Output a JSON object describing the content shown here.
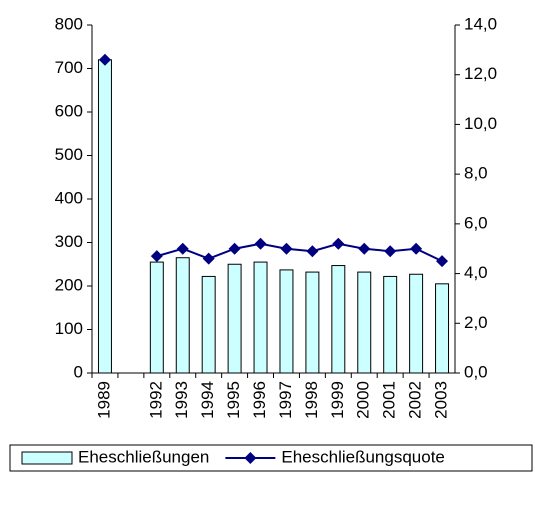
{
  "chart_data": {
    "type": "bar",
    "categories": [
      "1989",
      null,
      "1992",
      "1993",
      "1994",
      "1995",
      "1996",
      "1997",
      "1998",
      "1999",
      "2000",
      "2001",
      "2002",
      "2003"
    ],
    "series": [
      {
        "name": "Eheschließungen",
        "type": "bar",
        "color": "#ccffff",
        "values": [
          720,
          null,
          255,
          265,
          222,
          250,
          255,
          237,
          232,
          247,
          232,
          222,
          227,
          205
        ]
      },
      {
        "name": "Eheschließungsquote",
        "type": "line",
        "axis": "y2",
        "color": "#000080",
        "values": [
          12.6,
          null,
          4.7,
          5.0,
          4.6,
          5.0,
          5.2,
          5.0,
          4.9,
          5.2,
          5.0,
          4.9,
          5.0,
          4.5
        ]
      }
    ],
    "ylim": [
      0,
      800
    ],
    "yticks": [
      0,
      100,
      200,
      300,
      400,
      500,
      600,
      700,
      800
    ],
    "y2lim": [
      0,
      14
    ],
    "y2ticks": [
      {
        "value": 0,
        "label": "0,0"
      },
      {
        "value": 2,
        "label": "2,0"
      },
      {
        "value": 4,
        "label": "4,0"
      },
      {
        "value": 6,
        "label": "6,0"
      },
      {
        "value": 8,
        "label": "8,0"
      },
      {
        "value": 10,
        "label": "10,0"
      },
      {
        "value": 12,
        "label": "12,0"
      },
      {
        "value": 14,
        "label": "14,0"
      }
    ],
    "legend": "bottom"
  }
}
